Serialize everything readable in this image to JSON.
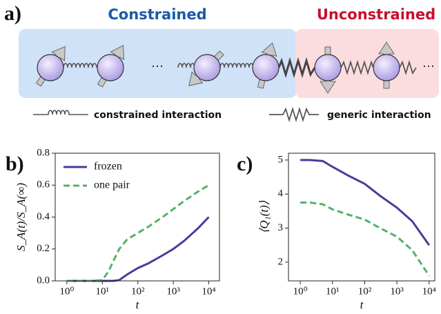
{
  "panel_a": {
    "label": "a)",
    "constrained_title": "Constrained",
    "unconstrained_title": "Unconstrained",
    "ellipsis": [
      "···",
      "···"
    ],
    "legend": [
      "constrained interaction",
      "generic interaction"
    ]
  },
  "chart_data": [
    {
      "type": "line",
      "panel_label": "b)",
      "xlabel": "t",
      "ylabel": "S_A(t)/S_A(∞)",
      "xscale": "log",
      "x": [
        1,
        2,
        5,
        10,
        15,
        20,
        30,
        50,
        100,
        200,
        500,
        1000,
        2000,
        5000,
        10000
      ],
      "series": [
        {
          "name": "frozen",
          "color": "#4a3a9a",
          "style": "solid",
          "values": [
            0,
            0,
            0,
            0,
            0,
            0,
            0.005,
            0.04,
            0.08,
            0.11,
            0.16,
            0.2,
            0.25,
            0.33,
            0.4
          ]
        },
        {
          "name": "one pair",
          "color": "#52b36a",
          "style": "dashed",
          "values": [
            0,
            0,
            0,
            0.005,
            0.06,
            0.12,
            0.2,
            0.26,
            0.3,
            0.34,
            0.4,
            0.45,
            0.5,
            0.56,
            0.6
          ]
        }
      ],
      "xlim": [
        0.47,
        20000
      ],
      "xticks": [
        {
          "value": 1,
          "label": "10⁰"
        },
        {
          "value": 10,
          "label": "10¹"
        },
        {
          "value": 100,
          "label": "10²"
        },
        {
          "value": 1000,
          "label": "10³"
        },
        {
          "value": 10000,
          "label": "10⁴"
        }
      ],
      "ylim": [
        0,
        0.8
      ],
      "yticks": [
        {
          "value": 0,
          "label": "0.0"
        },
        0.2,
        0.4,
        0.6,
        0.8
      ],
      "legend": "upper left",
      "grid": false
    },
    {
      "type": "line",
      "panel_label": "c)",
      "xlabel": "t",
      "ylabel": "⟨Q₁(t)⟩",
      "xscale": "log",
      "x": [
        1,
        2,
        5,
        10,
        30,
        100,
        300,
        1000,
        3000,
        10000
      ],
      "series": [
        {
          "color": "#4a3a9a",
          "style": "solid",
          "values": [
            5,
            5,
            4.97,
            4.8,
            4.55,
            4.3,
            3.95,
            3.6,
            3.2,
            2.5
          ]
        },
        {
          "color": "#52b36a",
          "style": "dashed",
          "values": [
            3.75,
            3.75,
            3.7,
            3.55,
            3.4,
            3.25,
            3.0,
            2.75,
            2.35,
            1.6
          ]
        }
      ],
      "xlim": [
        0.43,
        15000
      ],
      "xticks": [
        {
          "value": 1,
          "label": "10⁰"
        },
        {
          "value": 10,
          "label": "10¹"
        },
        {
          "value": 100,
          "label": "10²"
        },
        {
          "value": 1000,
          "label": "10³"
        },
        {
          "value": 10000,
          "label": "10⁴"
        }
      ],
      "ylim": [
        1.45,
        5.2
      ],
      "yticks": [
        2,
        3,
        4,
        5
      ],
      "grid": false
    }
  ]
}
